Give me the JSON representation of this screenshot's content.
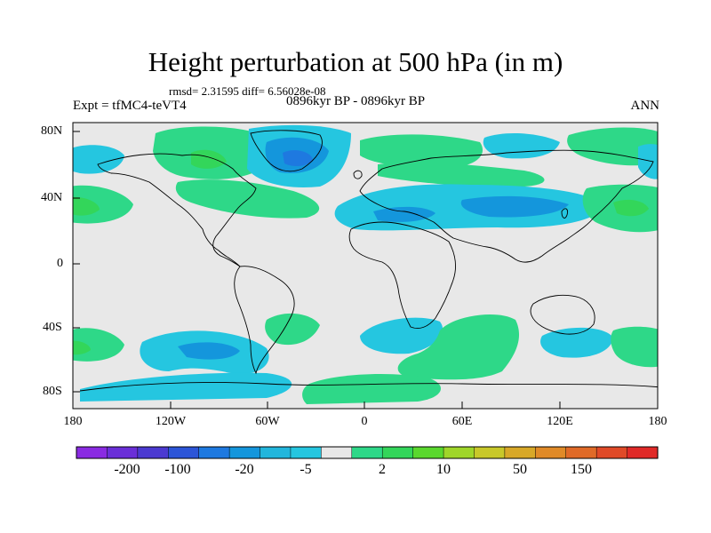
{
  "title": "Height perturbation at 500 hPa (in m)",
  "stats_line": "rmsd= 2.31595 diff= 6.56028e-08",
  "period": "0896kyr BP - 0896kyr BP",
  "experiment": "Expt = tfMC4-teVT4",
  "season": "ANN",
  "lat_labels": [
    "80N",
    "40N",
    "0",
    "40S",
    "80S"
  ],
  "lon_labels": [
    "180",
    "120W",
    "60W",
    "0",
    "60E",
    "120E",
    "180"
  ],
  "colorbar": {
    "labels": [
      "-200",
      "-100",
      "-20",
      "-5",
      "2",
      "10",
      "50",
      "150"
    ],
    "colors": [
      "#8a2be2",
      "#6a2fd8",
      "#4b3ad1",
      "#2c55d8",
      "#1e79e0",
      "#1496dc",
      "#22b6dc",
      "#25c6e0",
      "#e8e8e8",
      "#2ed888",
      "#33d65a",
      "#5ad82e",
      "#9fd62a",
      "#c8c82a",
      "#d8a828",
      "#e08a28",
      "#e06a28",
      "#e04a28",
      "#e02a28"
    ]
  },
  "field_colors": {
    "neutral": "#e8e8e8",
    "pos_weak": "#2ed888",
    "pos_mid": "#33d65a",
    "neg_weak": "#25c6e0",
    "neg_mid": "#1496dc",
    "neg_strong": "#1e79e0",
    "neg_core": "#2c55d8"
  }
}
